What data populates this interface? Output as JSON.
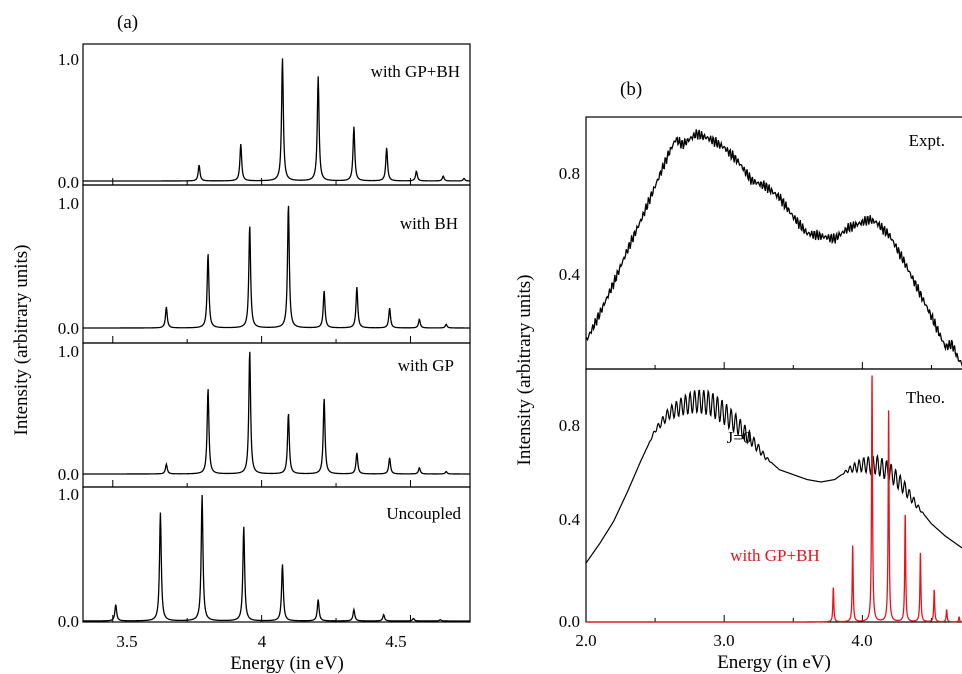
{
  "colors": {
    "ink": "#000000",
    "accent": "#e8121b"
  },
  "panel_a": {
    "label": "(a)",
    "ylabel": "Intensity (arbitrary units)",
    "xlabel": "Energy (in eV)",
    "x_ticks": [
      "3.5",
      "4",
      "4.5"
    ],
    "y_tick_top": "1.0",
    "y_tick_bottom": "0.0"
  },
  "panel_b": {
    "label": "(b)",
    "ylabel": "Intensity (arbitrary units)",
    "xlabel": "Energy (in eV)",
    "x_ticks": [
      "2.0",
      "3.0",
      "4.0"
    ],
    "upper_y_ticks": [
      "0.8",
      "0.4"
    ],
    "lower_y_ticks": [
      "0.8",
      "0.4",
      "0.0"
    ],
    "annotation_j": "J=0",
    "annotation_red": "with GP+BH"
  },
  "chart_data": [
    {
      "type": "line",
      "panel": "a-1",
      "annotation": "with GP+BH",
      "xlim": [
        3.4,
        4.7
      ],
      "ylim": [
        0,
        1.0
      ],
      "peaks": [
        {
          "x": 3.79,
          "y": 0.13
        },
        {
          "x": 3.93,
          "y": 0.3
        },
        {
          "x": 4.07,
          "y": 1.0
        },
        {
          "x": 4.19,
          "y": 0.85
        },
        {
          "x": 4.31,
          "y": 0.44
        },
        {
          "x": 4.42,
          "y": 0.27
        },
        {
          "x": 4.52,
          "y": 0.08
        },
        {
          "x": 4.61,
          "y": 0.04
        },
        {
          "x": 4.68,
          "y": 0.02
        }
      ]
    },
    {
      "type": "line",
      "panel": "a-2",
      "annotation": "with BH",
      "xlim": [
        3.4,
        4.7
      ],
      "ylim": [
        0,
        1.0
      ],
      "peaks": [
        {
          "x": 3.68,
          "y": 0.17
        },
        {
          "x": 3.82,
          "y": 0.6
        },
        {
          "x": 3.96,
          "y": 0.83
        },
        {
          "x": 4.09,
          "y": 1.0
        },
        {
          "x": 4.21,
          "y": 0.3
        },
        {
          "x": 4.32,
          "y": 0.33
        },
        {
          "x": 4.43,
          "y": 0.16
        },
        {
          "x": 4.53,
          "y": 0.07
        },
        {
          "x": 4.62,
          "y": 0.03
        }
      ]
    },
    {
      "type": "line",
      "panel": "a-3",
      "annotation": "with GP",
      "xlim": [
        3.4,
        4.7
      ],
      "ylim": [
        0,
        1.0
      ],
      "peaks": [
        {
          "x": 3.68,
          "y": 0.08
        },
        {
          "x": 3.82,
          "y": 0.69
        },
        {
          "x": 3.96,
          "y": 1.0
        },
        {
          "x": 4.09,
          "y": 0.49
        },
        {
          "x": 4.21,
          "y": 0.61
        },
        {
          "x": 4.32,
          "y": 0.17
        },
        {
          "x": 4.43,
          "y": 0.13
        },
        {
          "x": 4.53,
          "y": 0.05
        },
        {
          "x": 4.62,
          "y": 0.02
        }
      ]
    },
    {
      "type": "line",
      "panel": "a-4",
      "annotation": "Uncoupled",
      "xlim": [
        3.4,
        4.7
      ],
      "ylim": [
        0,
        1.0
      ],
      "peaks": [
        {
          "x": 3.51,
          "y": 0.13
        },
        {
          "x": 3.66,
          "y": 0.86
        },
        {
          "x": 3.8,
          "y": 1.0
        },
        {
          "x": 3.94,
          "y": 0.75
        },
        {
          "x": 4.07,
          "y": 0.45
        },
        {
          "x": 4.19,
          "y": 0.17
        },
        {
          "x": 4.31,
          "y": 0.09
        },
        {
          "x": 4.41,
          "y": 0.05
        },
        {
          "x": 4.51,
          "y": 0.02
        },
        {
          "x": 4.6,
          "y": 0.01
        }
      ]
    },
    {
      "type": "line",
      "panel": "b-upper",
      "annotation": "Expt.",
      "xlim": [
        2.0,
        4.75
      ],
      "ylim": [
        0.12,
        1.03
      ],
      "series": [
        {
          "x": [
            2.0,
            2.1,
            2.2,
            2.3,
            2.4,
            2.5,
            2.6,
            2.65,
            2.7,
            2.8,
            2.9,
            3.0,
            3.1,
            3.2,
            3.3,
            3.4,
            3.5,
            3.6,
            3.7,
            3.8,
            3.9,
            4.0,
            4.05,
            4.1,
            4.2,
            4.3,
            4.4,
            4.5,
            4.6,
            4.65,
            4.7,
            4.75
          ],
          "y": [
            0.22,
            0.32,
            0.43,
            0.55,
            0.66,
            0.78,
            0.9,
            0.95,
            0.93,
            0.97,
            0.95,
            0.92,
            0.87,
            0.8,
            0.78,
            0.74,
            0.67,
            0.61,
            0.6,
            0.59,
            0.63,
            0.65,
            0.66,
            0.65,
            0.6,
            0.51,
            0.41,
            0.31,
            0.2,
            0.21,
            0.15,
            0.13
          ]
        }
      ]
    },
    {
      "type": "line",
      "panel": "b-lower",
      "annotation": "Theo.",
      "xlim": [
        2.0,
        4.75
      ],
      "ylim": [
        0,
        1.03
      ],
      "series": [
        {
          "x": [
            2.0,
            2.1,
            2.2,
            2.3,
            2.4,
            2.5,
            2.6,
            2.7,
            2.8,
            2.9,
            3.0,
            3.1,
            3.2,
            3.3,
            3.4,
            3.5,
            3.6,
            3.7,
            3.8,
            3.9,
            4.0,
            4.1,
            4.2,
            4.3,
            4.4,
            4.5,
            4.6,
            4.7,
            4.75
          ],
          "y": [
            0.24,
            0.32,
            0.41,
            0.53,
            0.66,
            0.78,
            0.85,
            0.88,
            0.9,
            0.89,
            0.85,
            0.8,
            0.74,
            0.67,
            0.62,
            0.6,
            0.58,
            0.57,
            0.58,
            0.62,
            0.64,
            0.64,
            0.61,
            0.55,
            0.47,
            0.4,
            0.35,
            0.31,
            0.29
          ]
        },
        {
          "color": "red",
          "peaks": [
            {
              "x": 3.79,
              "y": 0.14
            },
            {
              "x": 3.93,
              "y": 0.31
            },
            {
              "x": 4.07,
              "y": 1.01
            },
            {
              "x": 4.19,
              "y": 0.86
            },
            {
              "x": 4.31,
              "y": 0.44
            },
            {
              "x": 4.42,
              "y": 0.28
            },
            {
              "x": 4.52,
              "y": 0.13
            },
            {
              "x": 4.61,
              "y": 0.05
            },
            {
              "x": 4.7,
              "y": 0.02
            }
          ]
        }
      ]
    }
  ]
}
